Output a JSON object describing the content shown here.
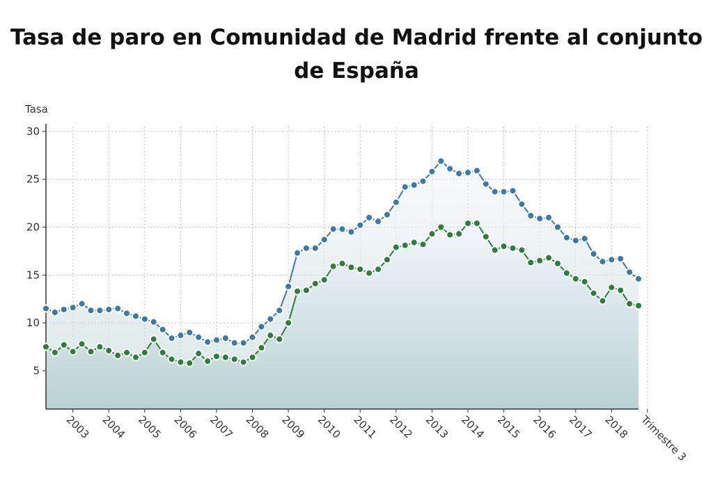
{
  "chart_data": {
    "type": "line",
    "title": "Tasa de paro en Comunidad de Madrid frente al conjunto de España",
    "ylabel": "Tasa",
    "xlabel": "",
    "ylim": [
      1,
      30.5
    ],
    "yticks": [
      5,
      10,
      15,
      20,
      25,
      30
    ],
    "grid": true,
    "x_tick_labels": [
      "2003",
      "2004",
      "2005",
      "2006",
      "2007",
      "2008",
      "2009",
      "2010",
      "2011",
      "2012",
      "2013",
      "2014",
      "2015",
      "2016",
      "2017",
      "2018",
      "Trimestre 3"
    ],
    "x_tick_index": [
      4,
      8,
      12,
      16,
      20,
      24,
      28,
      32,
      36,
      40,
      44,
      48,
      52,
      56,
      60,
      64,
      68
    ],
    "colors": {
      "spain": "#3c78a8",
      "madrid": "#2e7d3e",
      "area_top": "#f4f6fc",
      "area_bottom": "#b9d2d2"
    },
    "series": [
      {
        "name": "España",
        "values": [
          11.5,
          11.1,
          11.4,
          11.6,
          12.0,
          11.3,
          11.3,
          11.4,
          11.5,
          11.0,
          10.7,
          10.4,
          10.1,
          9.3,
          8.4,
          8.7,
          9.0,
          8.5,
          8.0,
          8.2,
          8.4,
          7.9,
          7.9,
          8.5,
          9.6,
          10.4,
          11.3,
          13.8,
          17.3,
          17.8,
          17.8,
          18.7,
          19.8,
          19.8,
          19.5,
          20.2,
          21.0,
          20.6,
          21.3,
          22.6,
          24.2,
          24.4,
          24.8,
          25.8,
          26.9,
          26.1,
          25.6,
          25.7,
          25.9,
          24.5,
          23.7,
          23.7,
          23.8,
          22.4,
          21.2,
          20.9,
          21.0,
          20.0,
          18.9,
          18.6,
          18.8,
          17.2,
          16.4,
          16.6,
          16.7,
          15.3,
          14.6
        ]
      },
      {
        "name": "Comunidad de Madrid",
        "values": [
          7.5,
          6.9,
          7.7,
          7.0,
          7.8,
          7.0,
          7.5,
          7.1,
          6.6,
          6.9,
          6.4,
          6.9,
          8.3,
          6.9,
          6.2,
          5.9,
          5.8,
          6.8,
          6.0,
          6.5,
          6.4,
          6.2,
          5.9,
          6.4,
          7.4,
          8.7,
          8.3,
          10.0,
          13.3,
          13.4,
          14.1,
          14.5,
          15.9,
          16.2,
          15.8,
          15.6,
          15.2,
          15.6,
          16.6,
          17.9,
          18.1,
          18.4,
          18.2,
          19.3,
          20.0,
          19.2,
          19.3,
          20.4,
          20.4,
          19.0,
          17.6,
          18.0,
          17.8,
          17.6,
          16.3,
          16.5,
          16.8,
          16.2,
          15.2,
          14.6,
          14.3,
          13.1,
          12.3,
          13.7,
          13.4,
          12.0,
          11.8
        ]
      }
    ]
  }
}
